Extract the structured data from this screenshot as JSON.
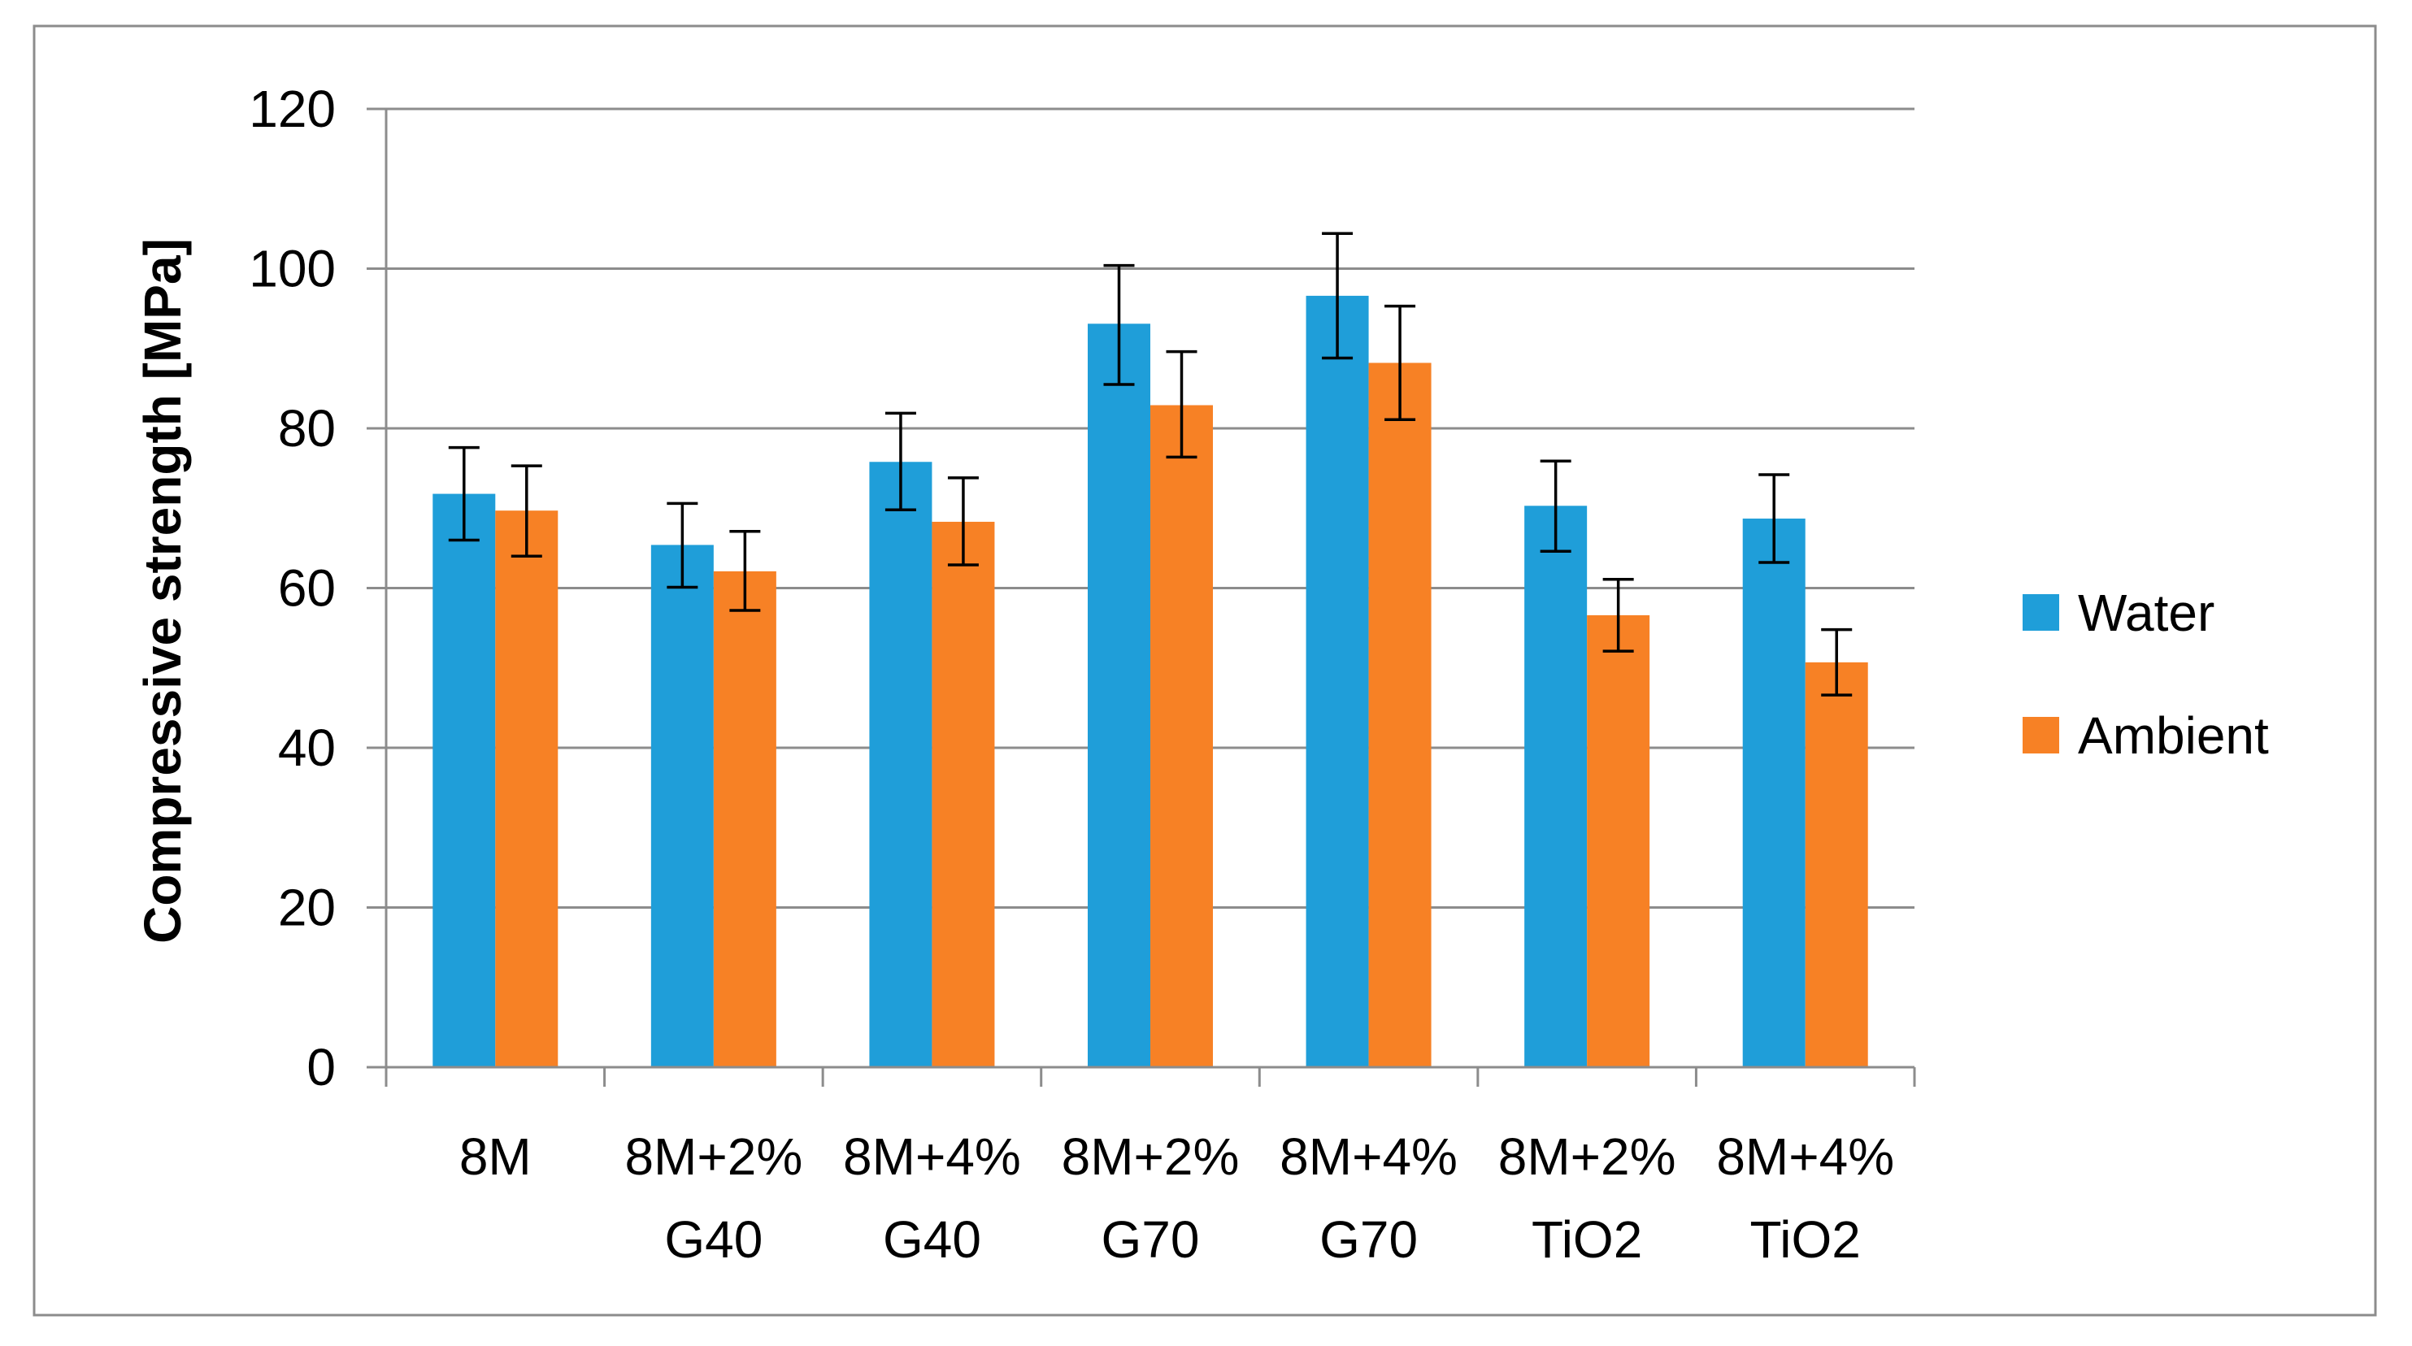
{
  "chart_data": {
    "type": "bar",
    "title": "",
    "xlabel": "",
    "ylabel": "Compressive strength [MPa]",
    "ylim": [
      0,
      120
    ],
    "yticks": [
      0,
      20,
      40,
      60,
      80,
      100,
      120
    ],
    "grid": true,
    "legend_position": "right",
    "categories": [
      [
        "8M"
      ],
      [
        "8M+2%",
        "G40"
      ],
      [
        "8M+4%",
        "G40"
      ],
      [
        "8M+2%",
        "G70"
      ],
      [
        "8M+4%",
        "G70"
      ],
      [
        "8M+2%",
        "TiO2"
      ],
      [
        "8M+4%",
        "TiO2"
      ]
    ],
    "series": [
      {
        "name": "Water",
        "color": "#1F9ED9",
        "values": [
          71.8,
          65.4,
          75.8,
          93.1,
          96.6,
          70.3,
          68.7
        ],
        "error_low": [
          66.0,
          60.1,
          69.8,
          85.5,
          88.8,
          64.6,
          63.2
        ],
        "error_high": [
          77.6,
          70.6,
          81.9,
          100.4,
          104.4,
          75.9,
          74.2
        ]
      },
      {
        "name": "Ambient",
        "color": "#F78125",
        "values": [
          69.7,
          62.1,
          68.3,
          82.9,
          88.2,
          56.6,
          50.7
        ],
        "error_low": [
          64.0,
          57.2,
          62.9,
          76.4,
          81.1,
          52.1,
          46.6
        ],
        "error_high": [
          75.3,
          67.1,
          73.8,
          89.6,
          95.3,
          61.1,
          54.8
        ]
      }
    ]
  }
}
